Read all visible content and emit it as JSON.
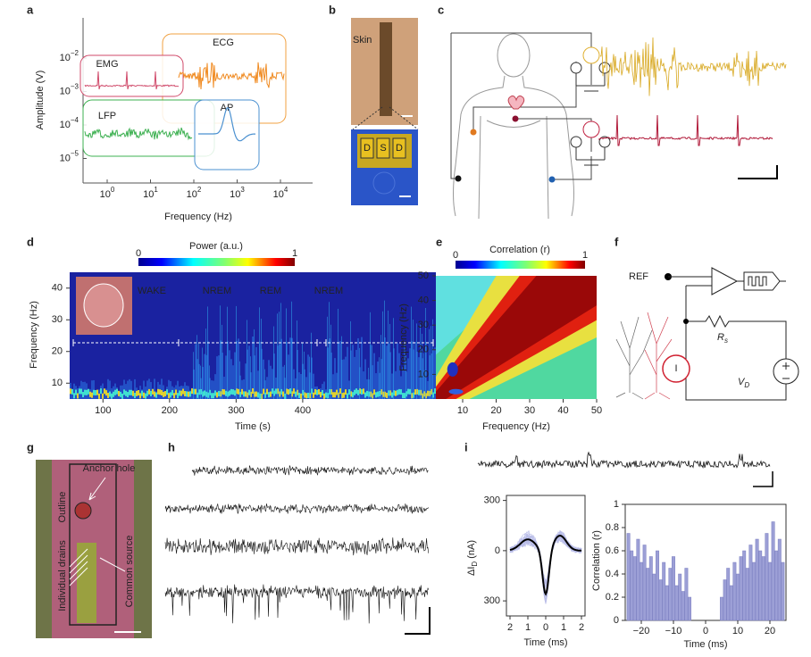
{
  "panels": {
    "a": {
      "label": "a",
      "y_label": "Amplitude (V)",
      "x_label": "Frequency (Hz)",
      "xticks": [
        {
          "value": 1,
          "label": "10",
          "sup": "0"
        },
        {
          "value": 10,
          "label": "10",
          "sup": "1"
        },
        {
          "value": 100,
          "label": "10",
          "sup": "2"
        },
        {
          "value": 1000,
          "label": "10",
          "sup": "3"
        },
        {
          "value": 10000,
          "label": "10",
          "sup": "4"
        }
      ],
      "yticks": [
        {
          "value": 0.01,
          "label": "10",
          "sup": "−2"
        },
        {
          "value": 0.001,
          "label": "10",
          "sup": "−3"
        },
        {
          "value": 0.0001,
          "label": "10",
          "sup": "−4"
        },
        {
          "value": 1e-05,
          "label": "10",
          "sup": "−5"
        }
      ],
      "boxes": [
        "ECG",
        "EMG",
        "LFP",
        "AP"
      ]
    },
    "b": {
      "label": "b",
      "skin": "Skin",
      "electrodes": [
        "D",
        "S",
        "D"
      ]
    },
    "c": {
      "label": "c"
    },
    "d": {
      "label": "d",
      "colorbar": {
        "title": "Power (a.u.)",
        "ticks": [
          0,
          1
        ]
      },
      "y_label": "Frequency (Hz)",
      "x_label": "Time (s)",
      "xlim": [
        50,
        600
      ],
      "ylim": [
        5,
        45
      ],
      "xticks": [
        100,
        200,
        300,
        400
      ],
      "yticks": [
        10,
        20,
        30,
        40
      ],
      "states": [
        "WAKE",
        "NREM",
        "REM",
        "NREM"
      ]
    },
    "e": {
      "label": "e",
      "colorbar": {
        "title": "Correlation (r)",
        "ticks": [
          0,
          1
        ]
      },
      "y_label": "Frequency (Hz)",
      "x_label": "Frequency (Hz)",
      "xlim": [
        2,
        50
      ],
      "ylim": [
        0,
        50
      ],
      "xticks": [
        10,
        20,
        30,
        40,
        50
      ],
      "yticks": [
        10,
        20,
        30,
        40,
        50
      ]
    },
    "f": {
      "label": "f",
      "ref": "REF",
      "resistor": {
        "main": "R",
        "sub": "s"
      },
      "source": {
        "main": "V",
        "sub": "D"
      },
      "current": "I"
    },
    "g": {
      "label": "g",
      "annotations": [
        "Anchor hole",
        "Outline",
        "Individual drains",
        "Common source"
      ]
    },
    "h": {
      "label": "h"
    },
    "i": {
      "label": "i",
      "waveform": {
        "type": "line",
        "y_label": {
          "main": "ΔI",
          "sub": "D",
          "unit": "(nA)"
        },
        "x_label": "Time (ms)",
        "xlim": [
          -2.2,
          2.2
        ],
        "ylim": [
          -390,
          330
        ],
        "xticks": [
          {
            "value": -2,
            "label": "2"
          },
          {
            "value": -1,
            "label": "1"
          },
          0,
          1,
          2
        ],
        "yticks": [
          300,
          0,
          {
            "value": -300,
            "label": "300"
          }
        ]
      },
      "correlation": {
        "type": "bar",
        "y_label": "Correlation (r)",
        "x_label": "Time (ms)",
        "xlim": [
          -25,
          25
        ],
        "ylim": [
          0,
          1
        ],
        "color": "#9c9fd6",
        "xticks": [
          {
            "value": -20,
            "label": "−20"
          },
          {
            "value": -10,
            "label": "−10"
          },
          0,
          10,
          20
        ],
        "yticks": [
          0,
          0.2,
          0.4,
          0.6,
          0.8,
          1
        ],
        "x": [
          -24,
          -23,
          -22,
          -21,
          -20,
          -19,
          -18,
          -17,
          -16,
          -15,
          -14,
          -13,
          -12,
          -11,
          -10,
          -9,
          -8,
          -7,
          -6,
          -5,
          5,
          6,
          7,
          8,
          9,
          10,
          11,
          12,
          13,
          14,
          15,
          16,
          17,
          18,
          19,
          20,
          21,
          22,
          23,
          24
        ],
        "values": [
          0.75,
          0.6,
          0.55,
          0.7,
          0.5,
          0.65,
          0.45,
          0.55,
          0.4,
          0.6,
          0.35,
          0.5,
          0.3,
          0.45,
          0.55,
          0.3,
          0.4,
          0.25,
          0.45,
          0.2,
          0.2,
          0.35,
          0.45,
          0.3,
          0.5,
          0.4,
          0.55,
          0.6,
          0.45,
          0.65,
          0.5,
          0.7,
          0.6,
          0.55,
          0.75,
          0.5,
          0.85,
          0.6,
          0.7,
          0.5
        ]
      }
    }
  }
}
